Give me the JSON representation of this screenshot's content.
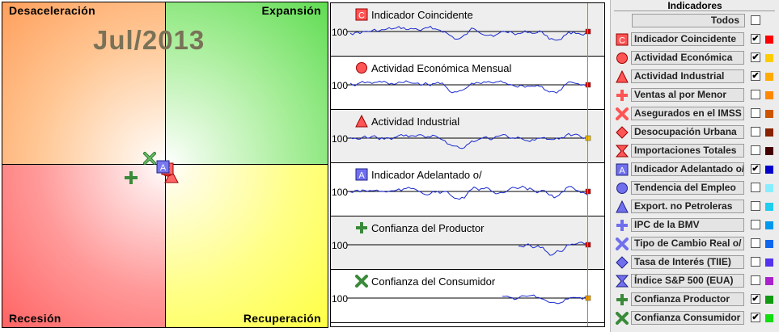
{
  "clock": {
    "date": "Jul/2013",
    "quadrants": {
      "top_left": "Desaceleración",
      "top_right": "Expansión",
      "bottom_left": "Recesión",
      "bottom_right": "Recuperación"
    },
    "colors": {
      "desaceleracion": "#ff9f5c",
      "expansion": "#5fdc52",
      "recesion": "#ff6464",
      "recuperacion": "#ffff44"
    }
  },
  "series": {
    "y_reference": "100",
    "rows": [
      {
        "title": "Indicador Coincidente",
        "icon": "letter-c-square-icon",
        "end_color": "#cc0000"
      },
      {
        "title": "Actividad Económica Mensual",
        "icon": "circle-icon",
        "end_color": "#cc0000"
      },
      {
        "title": "Actividad Industrial",
        "icon": "triangle-icon",
        "end_color": "#f0c000"
      },
      {
        "title": "Indicador Adelantado o/",
        "icon": "letter-a-square-icon",
        "end_color": "#cc0000"
      },
      {
        "title": "Confianza del Productor",
        "icon": "plus-icon",
        "end_color": "#cc0000"
      },
      {
        "title": "Confianza del Consumidor",
        "icon": "x-icon",
        "end_color": "#f0a000"
      }
    ]
  },
  "legend": {
    "title": "Indicadores",
    "all_label": "Todos",
    "items": [
      {
        "label": "Indicador Coincidente",
        "icon": "letter-c-square-icon",
        "checked": true,
        "color": "#ff0000"
      },
      {
        "label": "Actividad Económica",
        "icon": "circle-icon",
        "checked": true,
        "color": "#ffcc00"
      },
      {
        "label": "Actividad Industrial",
        "icon": "triangle-icon",
        "checked": true,
        "color": "#ffaa00"
      },
      {
        "label": "Ventas al por Menor",
        "icon": "plus-icon",
        "checked": false,
        "color": "#ff8800"
      },
      {
        "label": "Asegurados en el IMSS",
        "icon": "x-icon",
        "checked": false,
        "color": "#cc5500"
      },
      {
        "label": "Desocupación Urbana",
        "icon": "diamond-icon",
        "checked": false,
        "color": "#882200"
      },
      {
        "label": "Importaciones Totales",
        "icon": "hourglass-icon",
        "checked": false,
        "color": "#440000"
      },
      {
        "label": "Indicador Adelantado o/",
        "icon": "letter-a-square-icon",
        "checked": true,
        "color": "#0000cc"
      },
      {
        "label": "Tendencia del Empleo",
        "icon": "circle-icon",
        "checked": false,
        "color": "#88eeff"
      },
      {
        "label": "Export. no Petroleras",
        "icon": "triangle-icon",
        "checked": false,
        "color": "#22ccee"
      },
      {
        "label": "IPC de la BMV",
        "icon": "plus-icon",
        "checked": false,
        "color": "#0099ee"
      },
      {
        "label": "Tipo de Cambio Real o/",
        "icon": "x-icon",
        "checked": false,
        "color": "#1166ee"
      },
      {
        "label": "Tasa de Interés (TIIE)",
        "icon": "diamond-icon",
        "checked": false,
        "color": "#5533ee"
      },
      {
        "label": "Índice S&P 500 (EUA)",
        "icon": "hourglass-icon",
        "checked": false,
        "color": "#aa22cc"
      },
      {
        "label": "Confianza Productor",
        "icon": "plus-icon",
        "checked": true,
        "color": "#119911"
      },
      {
        "label": "Confianza Consumidor",
        "icon": "x-icon",
        "checked": true,
        "color": "#11dd11"
      }
    ]
  }
}
